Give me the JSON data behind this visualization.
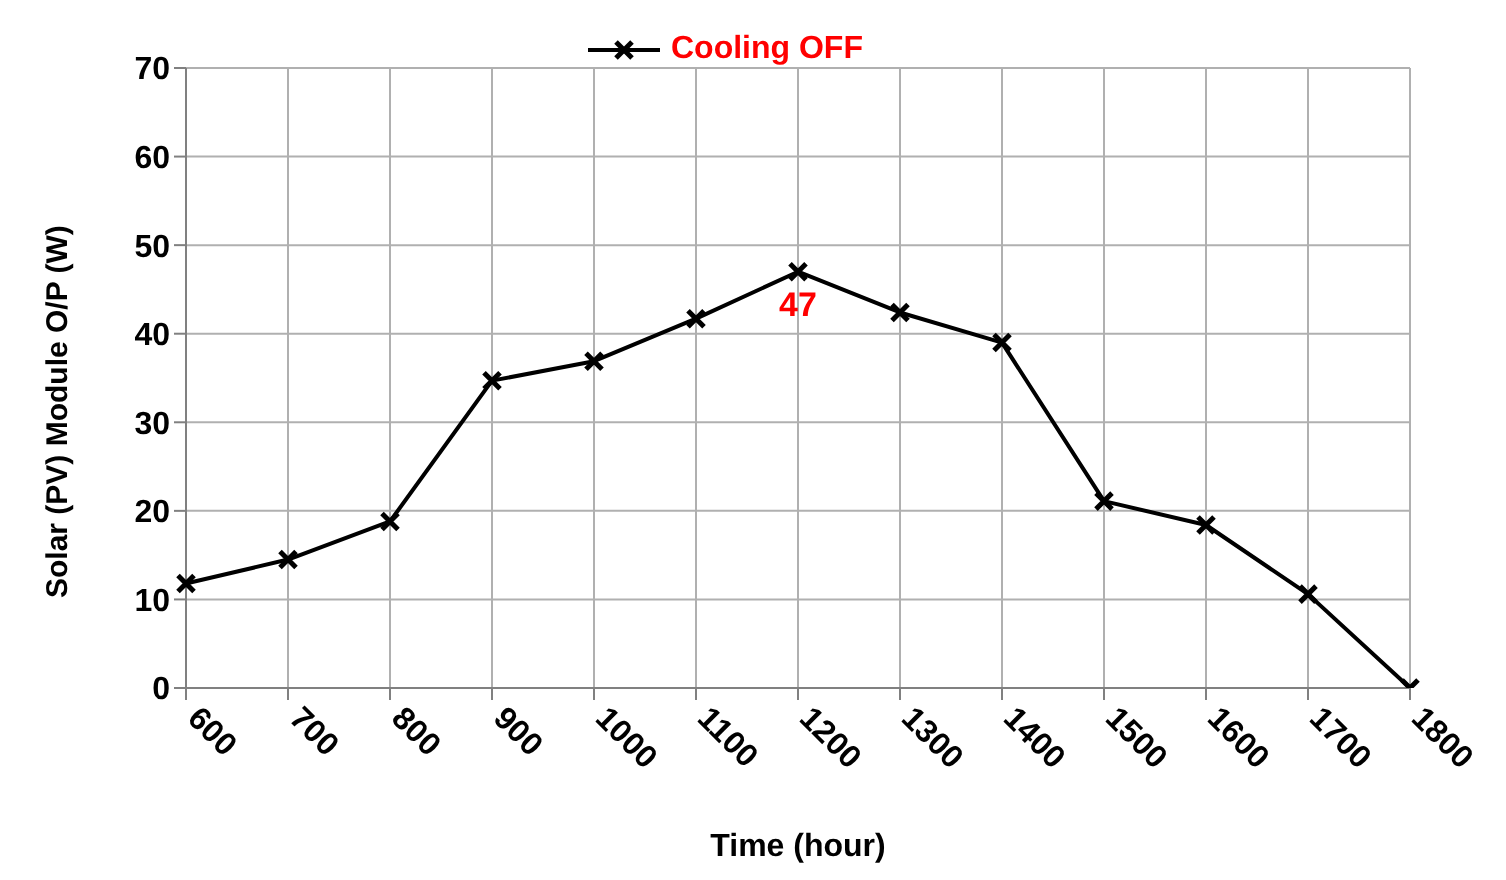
{
  "chart_data": {
    "type": "line",
    "xlabel": "Time (hour)",
    "ylabel": "Solar (PV) Module O/P (W)",
    "categories": [
      "600",
      "700",
      "800",
      "900",
      "1000",
      "1100",
      "1200",
      "1300",
      "1400",
      "1500",
      "1600",
      "1700",
      "1800"
    ],
    "series": [
      {
        "name": "Cooling OFF",
        "color": "#000000",
        "values": [
          11.8,
          14.5,
          18.8,
          34.7,
          36.9,
          41.7,
          47,
          42.4,
          39,
          21.1,
          18.4,
          10.6,
          0
        ],
        "value_labels": [
          null,
          null,
          null,
          null,
          null,
          null,
          "47",
          null,
          null,
          null,
          null,
          null,
          null
        ]
      }
    ],
    "ylim": [
      0,
      70
    ],
    "yticks": [
      0,
      10,
      20,
      30,
      40,
      50,
      60,
      70
    ],
    "grid": true,
    "legend": "top",
    "marker": "cross",
    "line_style": "solid"
  }
}
